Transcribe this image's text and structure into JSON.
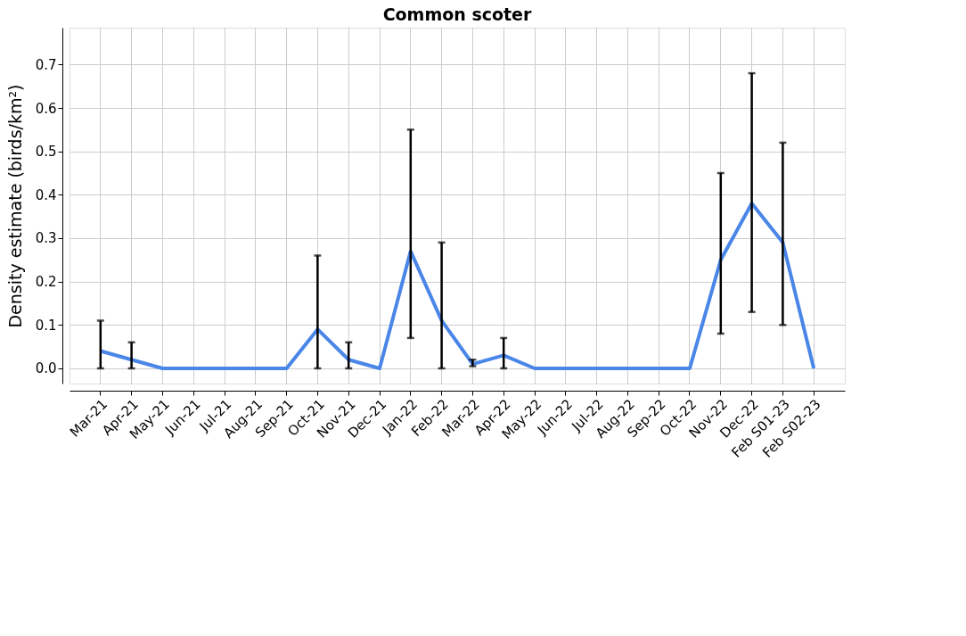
{
  "chart_data": {
    "type": "line",
    "title": "Common scoter",
    "ylabel": "Density estimate (birds/km²)",
    "categories": [
      "Mar-21",
      "Apr-21",
      "May-21",
      "Jun-21",
      "Jul-21",
      "Aug-21",
      "Sep-21",
      "Oct-21",
      "Nov-21",
      "Dec-21",
      "Jan-22",
      "Feb-22",
      "Mar-22",
      "Apr-22",
      "May-22",
      "Jun-22",
      "Jul-22",
      "Aug-22",
      "Sep-22",
      "Oct-22",
      "Nov-22",
      "Dec-22",
      "Feb S01-23",
      "Feb S02-23"
    ],
    "series": [
      {
        "color": "#4a86e8",
        "values": [
          0.04,
          0.02,
          0,
          0,
          0,
          0,
          0,
          0.09,
          0.02,
          0,
          0.27,
          0.11,
          0.01,
          0.03,
          0,
          0,
          0,
          0,
          0,
          0,
          0.25,
          0.38,
          0.29,
          0
        ],
        "errors": [
          [
            0,
            0.11
          ],
          [
            0,
            0.06
          ],
          null,
          null,
          null,
          null,
          null,
          [
            0,
            0.26
          ],
          [
            0,
            0.06
          ],
          null,
          [
            0.07,
            0.55
          ],
          [
            0,
            0.29
          ],
          [
            0.005,
            0.02
          ],
          [
            0,
            0.07
          ],
          null,
          null,
          null,
          null,
          null,
          null,
          [
            0.08,
            0.45
          ],
          [
            0.13,
            0.68
          ],
          [
            0.1,
            0.52
          ],
          null
        ]
      }
    ],
    "ylim": [
      -0.035,
      0.785
    ],
    "yticks": [
      {
        "value": 0,
        "label": "0.0"
      },
      0.1,
      0.2,
      0.3,
      0.4,
      0.5,
      0.6,
      0.7
    ],
    "grid": true,
    "marker": "none",
    "line_style": "solid"
  }
}
